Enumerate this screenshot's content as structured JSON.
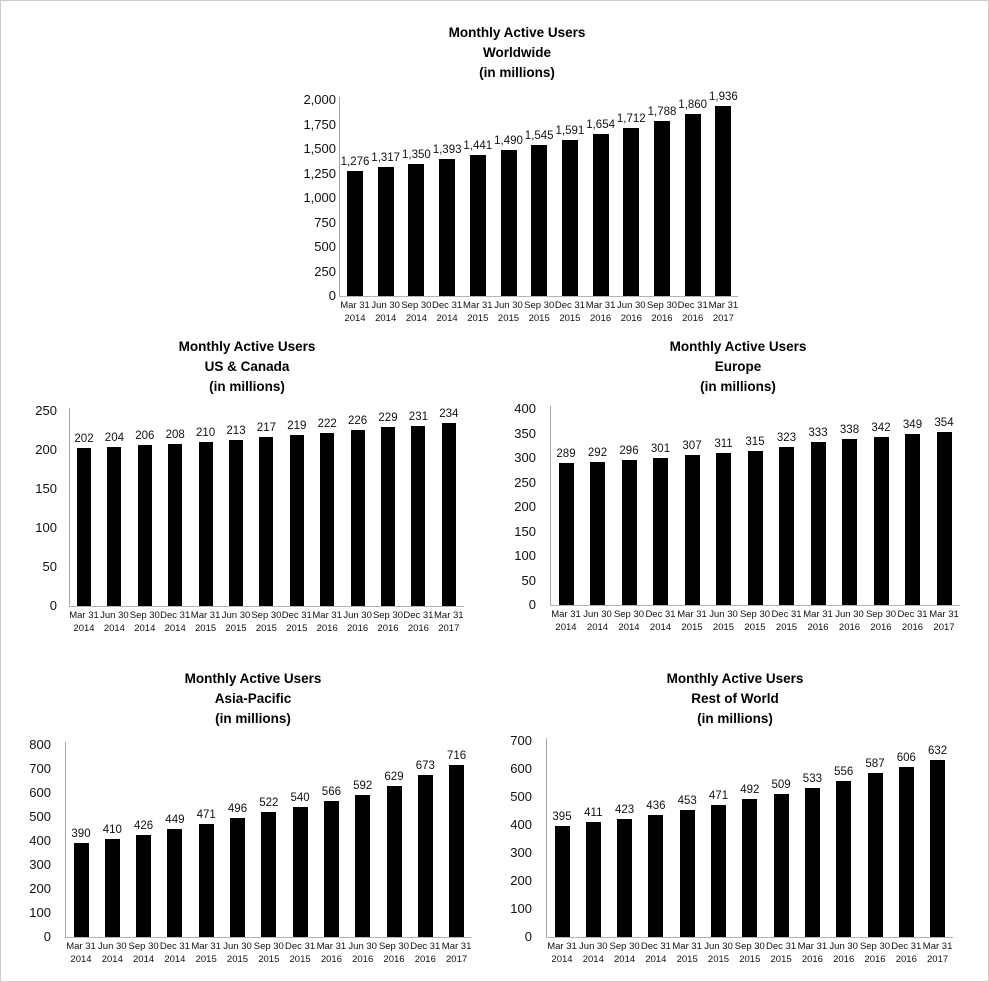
{
  "page": {
    "background": "#ffffff",
    "bar_color": "#000000",
    "axis_color": "#a6a6a6",
    "text_color": "#000000"
  },
  "chart_data": [
    {
      "type": "bar",
      "title": "Monthly Active Users Worldwide (in millions)",
      "title_lines": [
        "Monthly Active Users",
        "Worldwide",
        "(in millions)"
      ],
      "xlabel": "",
      "ylabel": "",
      "ylim": [
        0,
        2000
      ],
      "ytick_values": [
        2000,
        1750,
        1500,
        1250,
        1000,
        750,
        500,
        250,
        0
      ],
      "ytick_labels": [
        "2,000",
        "1,750",
        "1,500",
        "1,250",
        "1,000",
        "750",
        "500",
        "250",
        "0"
      ],
      "grid": false,
      "legend": "none",
      "categories_line1": [
        "Mar 31",
        "Jun 30",
        "Sep 30",
        "Dec 31",
        "Mar 31",
        "Jun 30",
        "Sep 30",
        "Dec 31",
        "Mar 31",
        "Jun 30",
        "Sep 30",
        "Dec 31",
        "Mar 31"
      ],
      "categories_line2": [
        "2014",
        "2014",
        "2014",
        "2014",
        "2015",
        "2015",
        "2015",
        "2015",
        "2016",
        "2016",
        "2016",
        "2016",
        "2017"
      ],
      "values": [
        1276,
        1317,
        1350,
        1393,
        1441,
        1490,
        1545,
        1591,
        1654,
        1712,
        1788,
        1860,
        1936
      ],
      "value_labels": [
        "1,276",
        "1,317",
        "1,350",
        "1,393",
        "1,441",
        "1,490",
        "1,545",
        "1,591",
        "1,654",
        "1,712",
        "1,788",
        "1,860",
        "1,936"
      ],
      "bar_color": "#000000"
    },
    {
      "type": "bar",
      "title": "Monthly Active Users US & Canada (in millions)",
      "title_lines": [
        "Monthly Active Users",
        "US & Canada",
        "(in millions)"
      ],
      "xlabel": "",
      "ylabel": "",
      "ylim": [
        0,
        250
      ],
      "ytick_values": [
        250,
        200,
        150,
        100,
        50,
        0
      ],
      "ytick_labels": [
        "250",
        "200",
        "150",
        "100",
        "50",
        "0"
      ],
      "grid": false,
      "legend": "none",
      "categories_line1": [
        "Mar 31",
        "Jun 30",
        "Sep 30",
        "Dec 31",
        "Mar 31",
        "Jun 30",
        "Sep 30",
        "Dec 31",
        "Mar 31",
        "Jun 30",
        "Sep 30",
        "Dec 31",
        "Mar 31"
      ],
      "categories_line2": [
        "2014",
        "2014",
        "2014",
        "2014",
        "2015",
        "2015",
        "2015",
        "2015",
        "2016",
        "2016",
        "2016",
        "2016",
        "2017"
      ],
      "values": [
        202,
        204,
        206,
        208,
        210,
        213,
        217,
        219,
        222,
        226,
        229,
        231,
        234
      ],
      "value_labels": [
        "202",
        "204",
        "206",
        "208",
        "210",
        "213",
        "217",
        "219",
        "222",
        "226",
        "229",
        "231",
        "234"
      ],
      "bar_color": "#000000"
    },
    {
      "type": "bar",
      "title": "Monthly Active Users Europe (in millions)",
      "title_lines": [
        "Monthly Active Users",
        "Europe",
        "(in millions)"
      ],
      "xlabel": "",
      "ylabel": "",
      "ylim": [
        0,
        400
      ],
      "ytick_values": [
        400,
        350,
        300,
        250,
        200,
        150,
        100,
        50,
        0
      ],
      "ytick_labels": [
        "400",
        "350",
        "300",
        "250",
        "200",
        "150",
        "100",
        "50",
        "0"
      ],
      "grid": false,
      "legend": "none",
      "categories_line1": [
        "Mar 31",
        "Jun 30",
        "Sep 30",
        "Dec 31",
        "Mar 31",
        "Jun 30",
        "Sep 30",
        "Dec 31",
        "Mar 31",
        "Jun 30",
        "Sep 30",
        "Dec 31",
        "Mar 31"
      ],
      "categories_line2": [
        "2014",
        "2014",
        "2014",
        "2014",
        "2015",
        "2015",
        "2015",
        "2015",
        "2016",
        "2016",
        "2016",
        "2016",
        "2017"
      ],
      "values": [
        289,
        292,
        296,
        301,
        307,
        311,
        315,
        323,
        333,
        338,
        342,
        349,
        354
      ],
      "value_labels": [
        "289",
        "292",
        "296",
        "301",
        "307",
        "311",
        "315",
        "323",
        "333",
        "338",
        "342",
        "349",
        "354"
      ],
      "bar_color": "#000000"
    },
    {
      "type": "bar",
      "title": "Monthly Active Users Asia-Pacific (in millions)",
      "title_lines": [
        "Monthly Active Users",
        "Asia-Pacific",
        "(in millions)"
      ],
      "xlabel": "",
      "ylabel": "",
      "ylim": [
        0,
        800
      ],
      "ytick_values": [
        800,
        700,
        600,
        500,
        400,
        300,
        200,
        100,
        0
      ],
      "ytick_labels": [
        "800",
        "700",
        "600",
        "500",
        "400",
        "300",
        "200",
        "100",
        "0"
      ],
      "grid": false,
      "legend": "none",
      "categories_line1": [
        "Mar 31",
        "Jun 30",
        "Sep 30",
        "Dec 31",
        "Mar 31",
        "Jun 30",
        "Sep 30",
        "Dec 31",
        "Mar 31",
        "Jun 30",
        "Sep 30",
        "Dec 31",
        "Mar 31"
      ],
      "categories_line2": [
        "2014",
        "2014",
        "2014",
        "2014",
        "2015",
        "2015",
        "2015",
        "2015",
        "2016",
        "2016",
        "2016",
        "2016",
        "2017"
      ],
      "values": [
        390,
        410,
        426,
        449,
        471,
        496,
        522,
        540,
        566,
        592,
        629,
        673,
        716
      ],
      "value_labels": [
        "390",
        "410",
        "426",
        "449",
        "471",
        "496",
        "522",
        "540",
        "566",
        "592",
        "629",
        "673",
        "716"
      ],
      "bar_color": "#000000"
    },
    {
      "type": "bar",
      "title": "Monthly Active Users Rest of World (in millions)",
      "title_lines": [
        "Monthly Active Users",
        "Rest of World",
        "(in millions)"
      ],
      "xlabel": "",
      "ylabel": "",
      "ylim": [
        0,
        700
      ],
      "ytick_values": [
        700,
        600,
        500,
        400,
        300,
        200,
        100,
        0
      ],
      "ytick_labels": [
        "700",
        "600",
        "500",
        "400",
        "300",
        "200",
        "100",
        "0"
      ],
      "grid": false,
      "legend": "none",
      "categories_line1": [
        "Mar 31",
        "Jun 30",
        "Sep 30",
        "Dec 31",
        "Mar 31",
        "Jun 30",
        "Sep 30",
        "Dec 31",
        "Mar 31",
        "Jun 30",
        "Sep 30",
        "Dec 31",
        "Mar 31"
      ],
      "categories_line2": [
        "2014",
        "2014",
        "2014",
        "2014",
        "2015",
        "2015",
        "2015",
        "2015",
        "2016",
        "2016",
        "2016",
        "2016",
        "2017"
      ],
      "values": [
        395,
        411,
        423,
        436,
        453,
        471,
        492,
        509,
        533,
        556,
        587,
        606,
        632
      ],
      "value_labels": [
        "395",
        "411",
        "423",
        "436",
        "453",
        "471",
        "492",
        "509",
        "533",
        "556",
        "587",
        "606",
        "632"
      ],
      "bar_color": "#000000"
    }
  ]
}
